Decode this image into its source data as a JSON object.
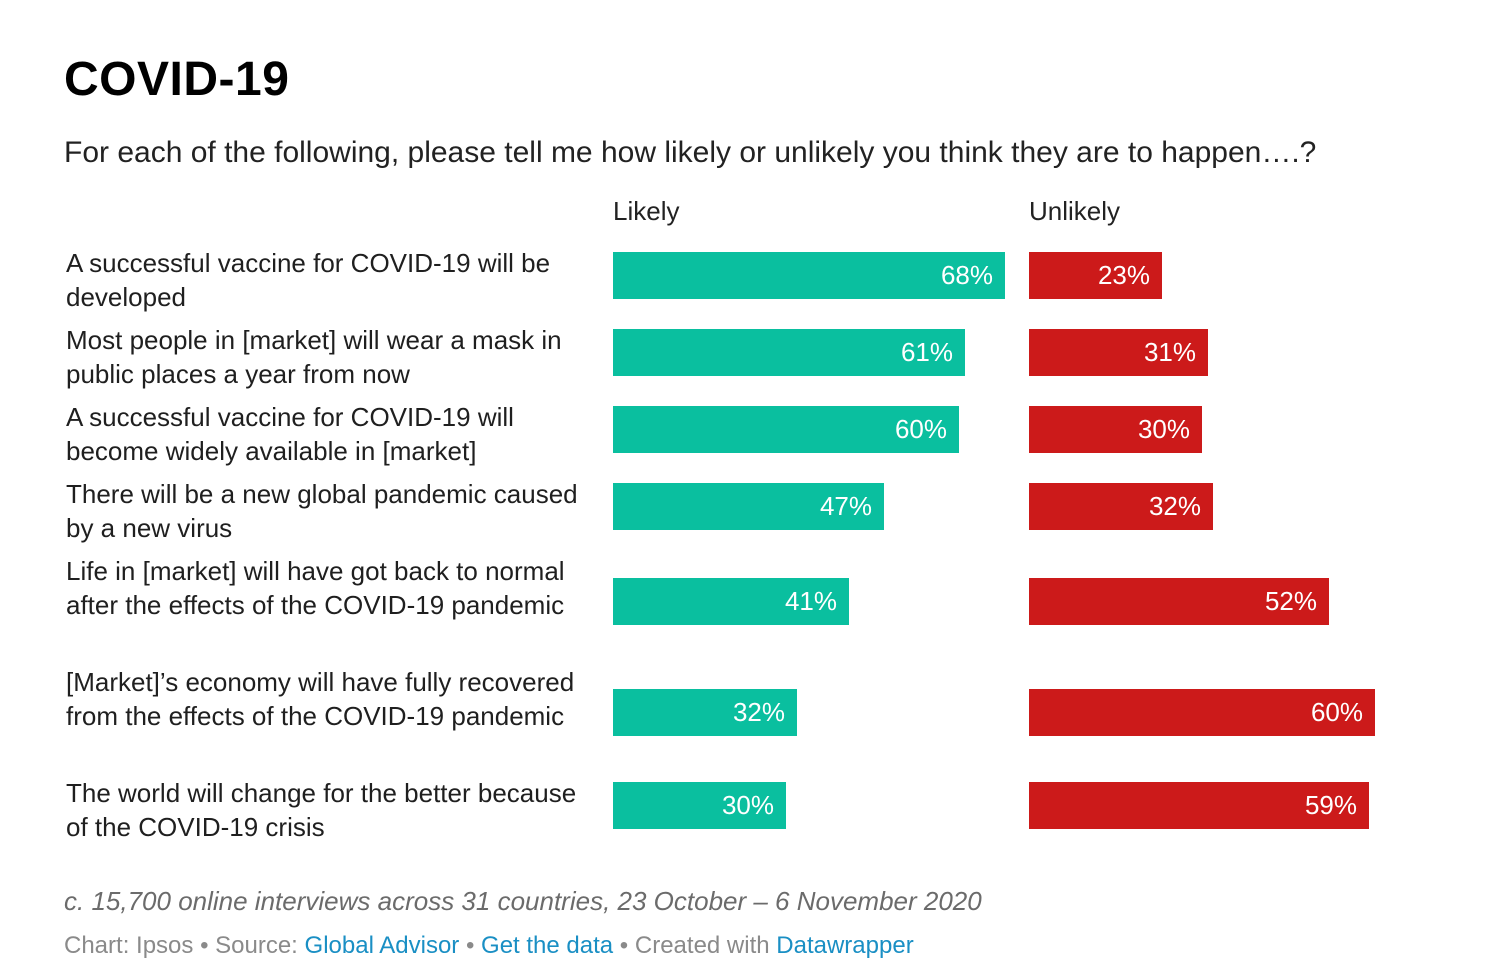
{
  "title": "COVID-19",
  "subtitle": "For each of the following, please tell me how likely or unlikely you think they are to happen….?",
  "chart_data": {
    "type": "bar",
    "title": "COVID-19",
    "subtitle": "For each of the following, please tell me how likely or unlikely you think they are to happen….?",
    "categories": [
      "A successful vaccine for COVID-19 will be developed",
      "Most people in [market] will wear a mask in public places a year from now",
      "A successful vaccine for COVID-19 will become widely available in [market]",
      "There will be a new global pandemic caused by a new virus",
      "Life in [market] will have got back to normal after the effects of the COVID-19 pandemic",
      "[Market]’s economy will have fully recovered from the effects of the COVID-19 pandemic",
      "The world will change for the better because of the COVID-19 crisis"
    ],
    "series": [
      {
        "name": "Likely",
        "values": [
          68,
          61,
          60,
          47,
          41,
          32,
          30
        ],
        "labels": [
          "68%",
          "61%",
          "60%",
          "47%",
          "41%",
          "32%",
          "30%"
        ],
        "color": "#0abf9f"
      },
      {
        "name": "Unlikely",
        "values": [
          23,
          31,
          30,
          32,
          52,
          60,
          59
        ],
        "labels": [
          "23%",
          "31%",
          "30%",
          "32%",
          "52%",
          "60%",
          "59%"
        ],
        "color": "#cc1a1a"
      }
    ],
    "unit": "%",
    "xlim": [
      0,
      68
    ],
    "grid": false
  },
  "footnote": "c. 15,700 online interviews across 31 countries, 23 October – 6 November 2020",
  "credits": {
    "chart": "Chart: Ipsos",
    "separator": "•",
    "source_label": "Source:",
    "source_link": "Global Advisor",
    "data_link": "Get the data",
    "created_label": "Created with",
    "tool_link": "Datawrapper"
  }
}
